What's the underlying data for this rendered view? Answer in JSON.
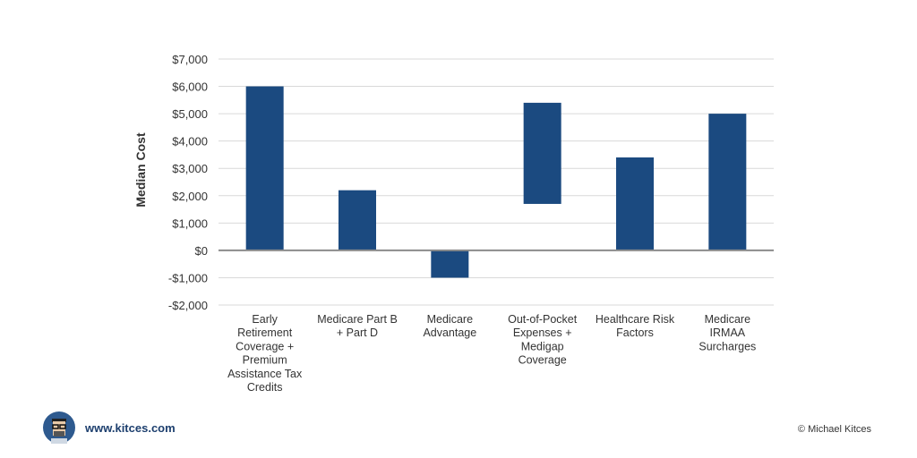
{
  "chart_data": {
    "type": "bar",
    "subtype": "floating",
    "ylabel": "Median Cost",
    "ylim": [
      -2000,
      7000
    ],
    "yticks": [
      7000,
      6000,
      5000,
      4000,
      3000,
      2000,
      1000,
      0,
      -1000,
      -2000
    ],
    "ytick_labels": [
      "$7,000",
      "$6,000",
      "$5,000",
      "$4,000",
      "$3,000",
      "$2,000",
      "$1,000",
      "$0",
      "-$1,000",
      "-$2,000"
    ],
    "grid": true,
    "bar_color": "#1b4a80",
    "categories": [
      "Early Retirement Coverage + Premium Assistance Tax Credits",
      "Medicare Part B + Part D",
      "Medicare Advantage",
      "Out-of-Pocket Expenses + Medigap Coverage",
      "Healthcare Risk Factors",
      "Medicare IRMAA Surcharges"
    ],
    "category_lines": [
      [
        "Early",
        "Retirement",
        "Coverage +",
        "Premium",
        "Assistance Tax",
        "Credits"
      ],
      [
        "Medicare Part B",
        "+ Part D"
      ],
      [
        "Medicare",
        "Advantage"
      ],
      [
        "Out-of-Pocket",
        "Expenses +",
        "Medigap",
        "Coverage"
      ],
      [
        "Healthcare Risk",
        "Factors"
      ],
      [
        "Medicare",
        "IRMAA",
        "Surcharges"
      ]
    ],
    "ranges": [
      [
        0,
        6000
      ],
      [
        0,
        2200
      ],
      [
        -1000,
        0
      ],
      [
        1700,
        5400
      ],
      [
        0,
        3400
      ],
      [
        0,
        5000
      ]
    ]
  },
  "footer": {
    "url": "www.kitces.com",
    "copyright": "© Michael Kitces"
  }
}
